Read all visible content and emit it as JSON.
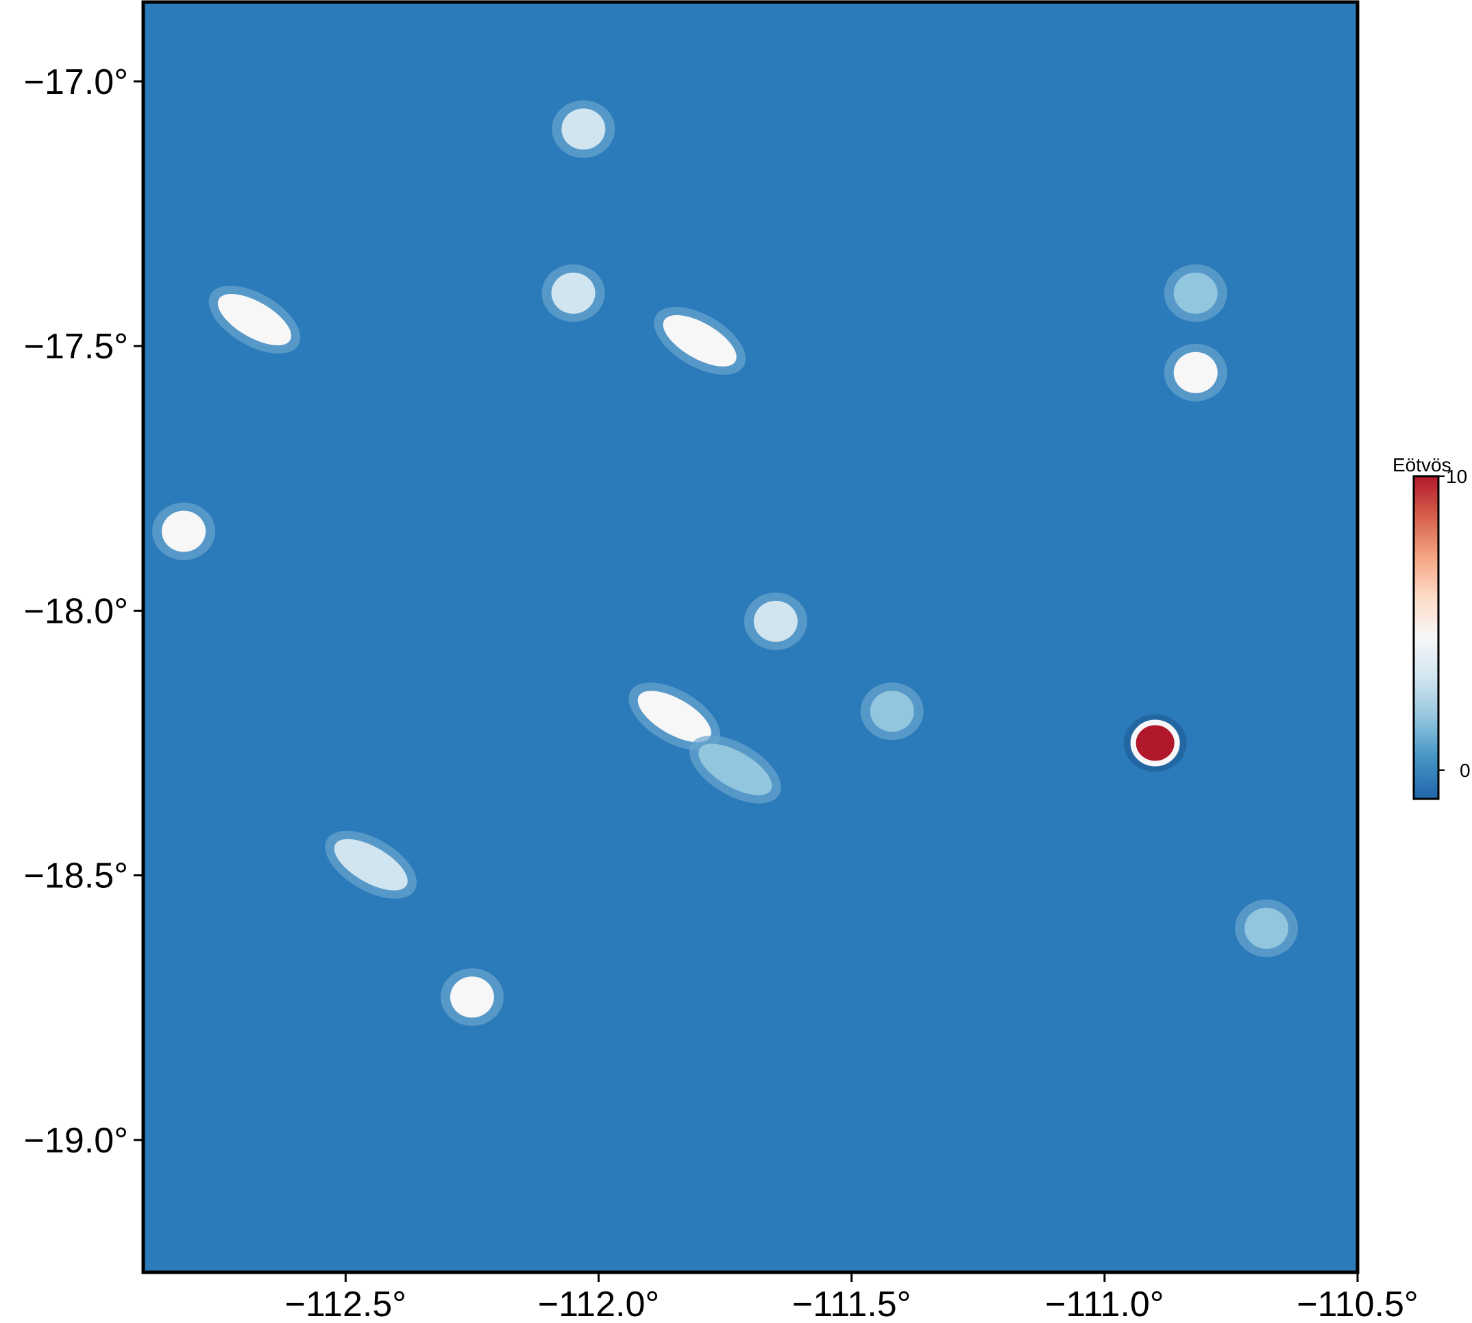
{
  "map": {
    "projection": "geographic",
    "frame": "plain black border",
    "lon_range": [
      -112.9,
      -110.5
    ],
    "lat_range": [
      -19.25,
      -16.85
    ],
    "background_color": "#2b7bba",
    "x_ticks": [
      {
        "value": -112.5,
        "label": "−112.5°"
      },
      {
        "value": -112.0,
        "label": "−112.0°"
      },
      {
        "value": -111.5,
        "label": "−111.5°"
      },
      {
        "value": -111.0,
        "label": "−111.0°"
      },
      {
        "value": -110.5,
        "label": "−110.5°"
      }
    ],
    "y_ticks": [
      {
        "value": -17.0,
        "label": "−17.0°"
      },
      {
        "value": -17.5,
        "label": "−17.5°"
      },
      {
        "value": -18.0,
        "label": "−18.0°"
      },
      {
        "value": -18.5,
        "label": "−18.5°"
      },
      {
        "value": -19.0,
        "label": "−19.0°"
      }
    ],
    "anomalies": [
      {
        "lon": -110.9,
        "lat": -18.25,
        "value": 10,
        "shape": "round",
        "color": "#b2182b"
      },
      {
        "lon": -111.85,
        "lat": -18.2,
        "value": 5,
        "shape": "elongated",
        "color": "#f7f7f7"
      },
      {
        "lon": -111.8,
        "lat": -17.49,
        "value": 5.5,
        "shape": "elongated",
        "color": "#f7f7f7"
      },
      {
        "lon": -110.82,
        "lat": -17.55,
        "value": 5.5,
        "shape": "round",
        "color": "#f7f7f7"
      },
      {
        "lon": -112.68,
        "lat": -17.45,
        "value": 4.5,
        "shape": "elongated",
        "color": "#f7f7f7"
      },
      {
        "lon": -112.82,
        "lat": -17.85,
        "value": 4.5,
        "shape": "round",
        "color": "#f7f7f7"
      },
      {
        "lon": -112.25,
        "lat": -18.73,
        "value": 4.5,
        "shape": "round",
        "color": "#f7f7f7"
      },
      {
        "lon": -111.65,
        "lat": -18.02,
        "value": 3,
        "shape": "round",
        "color": "#d1e5f0"
      },
      {
        "lon": -112.45,
        "lat": -18.48,
        "value": 2.5,
        "shape": "elongated",
        "color": "#d1e5f0"
      },
      {
        "lon": -112.03,
        "lat": -17.09,
        "value": 2.5,
        "shape": "round",
        "color": "#d1e5f0"
      },
      {
        "lon": -112.05,
        "lat": -17.4,
        "value": 2,
        "shape": "round",
        "color": "#d1e5f0"
      },
      {
        "lon": -111.73,
        "lat": -18.3,
        "value": 2,
        "shape": "elongated",
        "color": "#92c5de"
      },
      {
        "lon": -111.42,
        "lat": -18.19,
        "value": 2,
        "shape": "round",
        "color": "#92c5de"
      },
      {
        "lon": -110.68,
        "lat": -18.6,
        "value": 2,
        "shape": "round",
        "color": "#92c5de"
      },
      {
        "lon": -110.82,
        "lat": -17.4,
        "value": 1.5,
        "shape": "round",
        "color": "#92c5de"
      }
    ]
  },
  "colorbar": {
    "title": "Eötvös",
    "max_label": "10",
    "zero_label": "0",
    "range": [
      -1,
      10
    ],
    "colors": [
      "#2166ac",
      "#4393c3",
      "#92c5de",
      "#d1e5f0",
      "#f7f7f7",
      "#fddbc7",
      "#f4a582",
      "#d6604d",
      "#b2182b"
    ]
  }
}
